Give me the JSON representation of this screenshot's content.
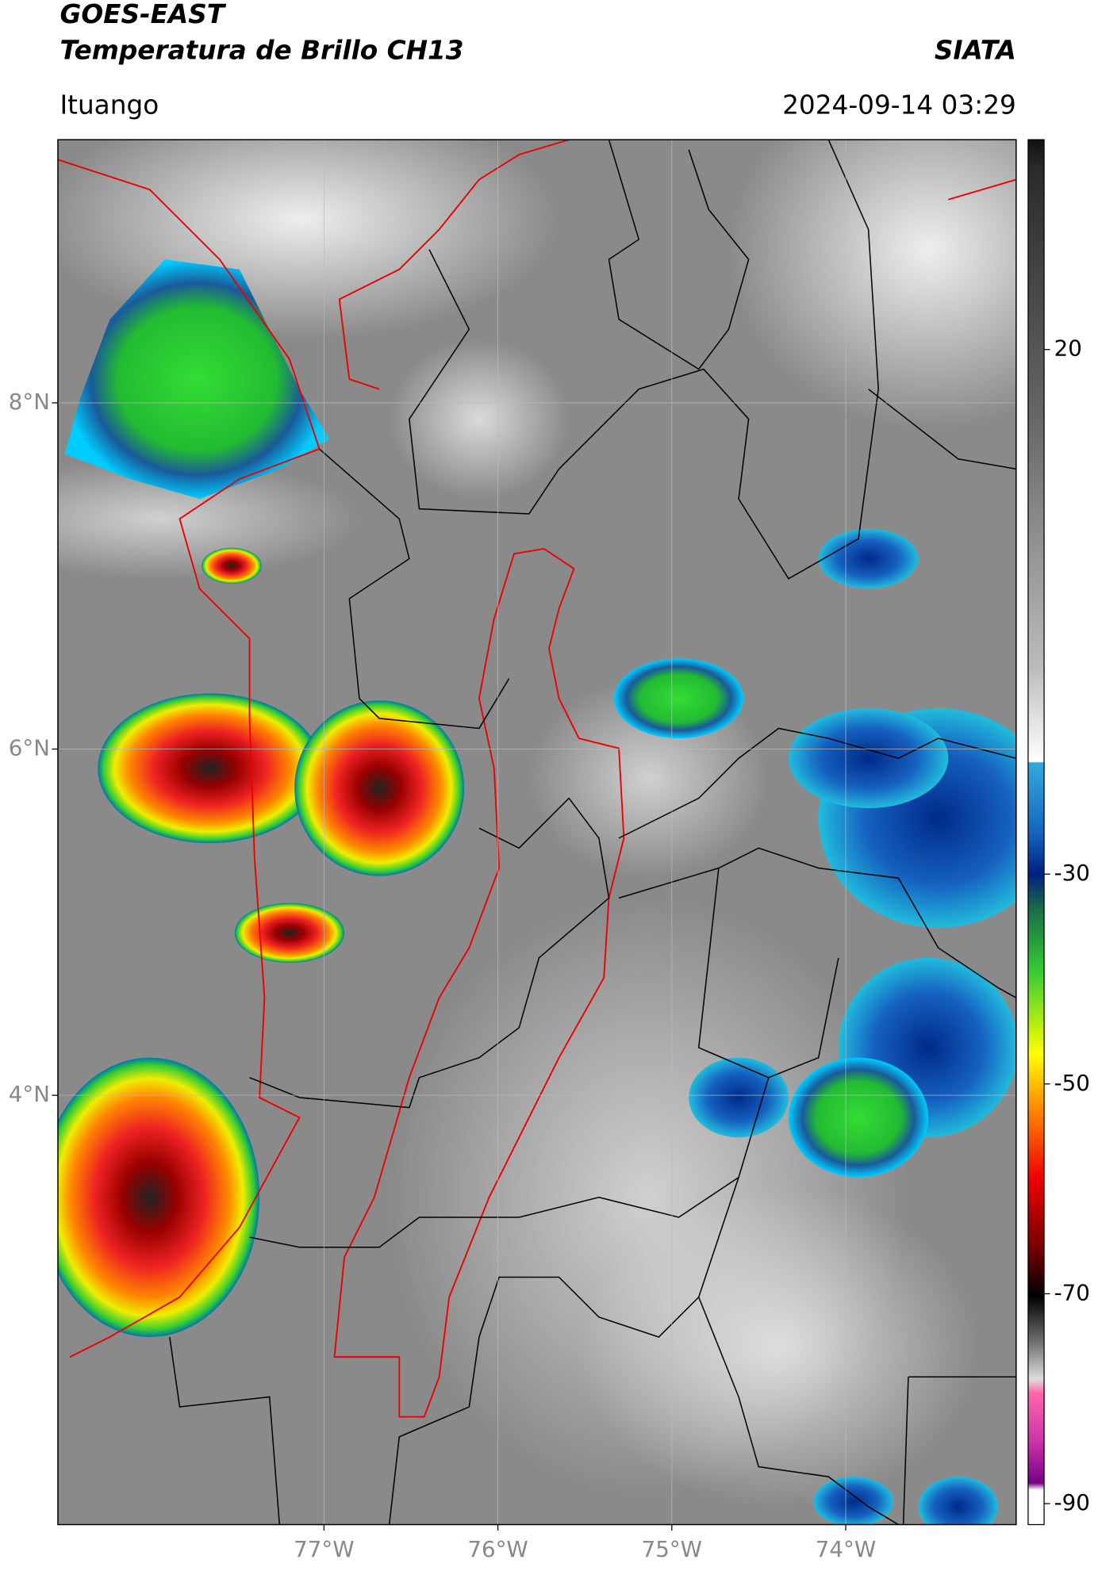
{
  "header": {
    "title": "GOES-EAST",
    "subtitle": "Temperatura de Brillo CH13",
    "brand": "SIATA",
    "location": "Ituango",
    "timestamp": "2024-09-14 03:29"
  },
  "map": {
    "latlim": [
      1.52,
      9.52
    ],
    "lonlim": [
      -78.53,
      -73.02
    ],
    "latticks": [
      {
        "value": 8,
        "label": "8°N"
      },
      {
        "value": 6,
        "label": "6°N"
      },
      {
        "value": 4,
        "label": "4°N"
      }
    ],
    "lonticks": [
      {
        "value": -77,
        "label": "77°W"
      },
      {
        "value": -76,
        "label": "76°W"
      },
      {
        "value": -75,
        "label": "75°W"
      },
      {
        "value": -74,
        "label": "74°W"
      }
    ],
    "grid": true
  },
  "colorbar": {
    "lim": [
      -92,
      40
    ],
    "ticks": [
      20,
      -30,
      -50,
      -70,
      -90
    ]
  }
}
